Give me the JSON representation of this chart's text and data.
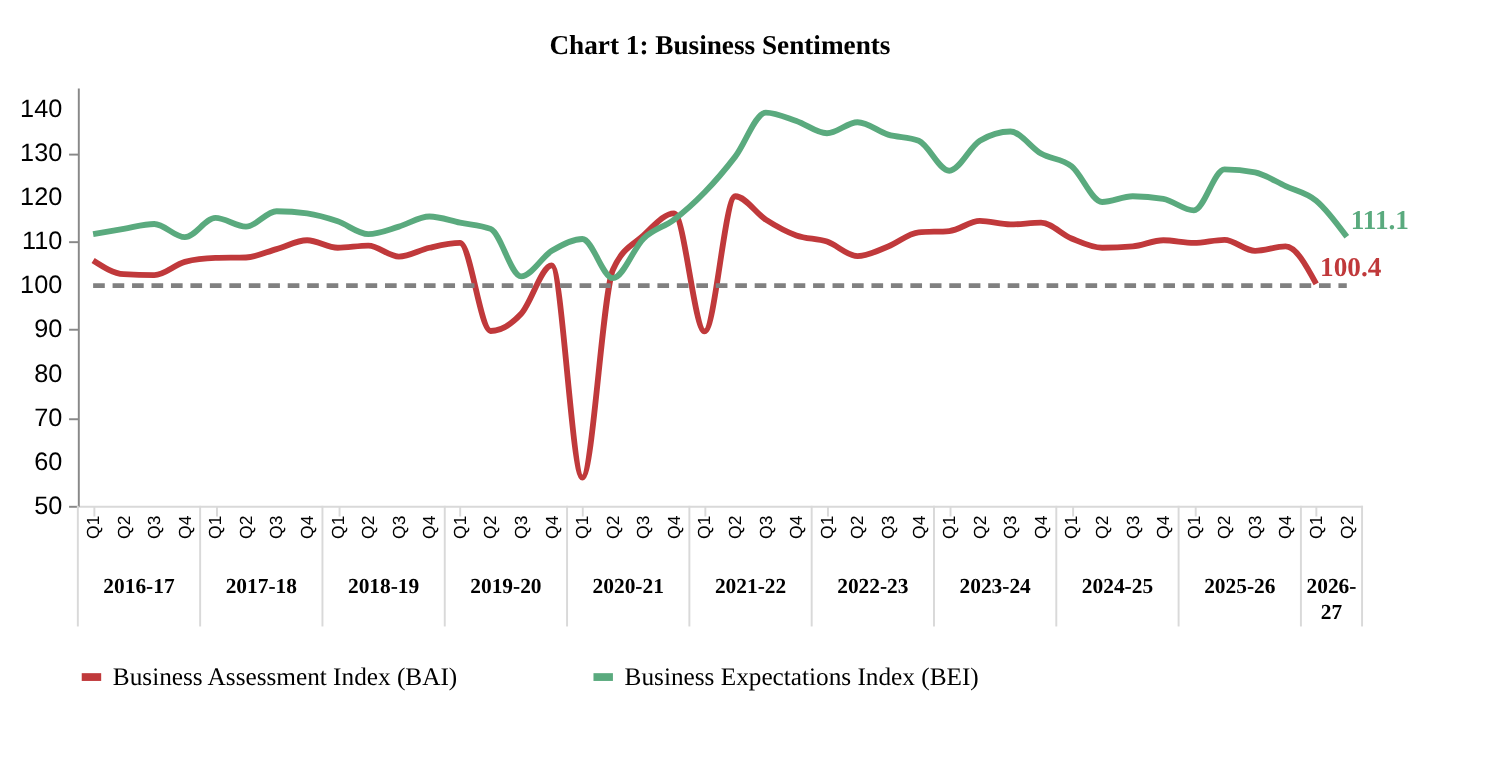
{
  "chart_data": {
    "type": "line",
    "title": "Chart 1: Business Sentiments",
    "categories": [
      "Q1",
      "Q2",
      "Q3",
      "Q4",
      "Q1",
      "Q2",
      "Q3",
      "Q4",
      "Q1",
      "Q2",
      "Q3",
      "Q4",
      "Q1",
      "Q2",
      "Q3",
      "Q4",
      "Q1",
      "Q2",
      "Q3",
      "Q4",
      "Q1",
      "Q2",
      "Q3",
      "Q4",
      "Q1",
      "Q2",
      "Q3",
      "Q4",
      "Q1",
      "Q2",
      "Q3",
      "Q4",
      "Q1",
      "Q2",
      "Q3",
      "Q4",
      "Q1",
      "Q2",
      "Q3",
      "Q4",
      "Q1",
      "Q2"
    ],
    "annotations": [
      "2016-17",
      "2017-18",
      "2018-19",
      "2019-20",
      "2020-21",
      "2021-22",
      "2022-23",
      "2023-24",
      "2024-25",
      "2025-26",
      "2026-27"
    ],
    "series": [
      {
        "name": "Business Assessment Index (BAI)",
        "color": "#c0393b",
        "values": [
          105.7,
          102.6,
          102.4,
          105.4,
          106.3,
          106.4,
          108.3,
          110.3,
          108.6,
          109.1,
          106.6,
          108.6,
          109.7,
          89.7,
          93.6,
          104.6,
          56.4,
          103.6,
          111.4,
          116.4,
          89.6,
          120.3,
          115,
          111.4,
          110,
          106.7,
          108.9,
          112.1,
          112.4,
          114.7,
          113.9,
          114.3,
          110.7,
          108.6,
          108.9,
          110.3,
          109.7,
          110.4,
          107.9,
          108.9,
          100.4,
          null
        ],
        "value_labels": [
          null,
          null,
          null,
          null,
          null,
          null,
          null,
          null,
          null,
          null,
          null,
          null,
          null,
          null,
          null,
          null,
          null,
          null,
          null,
          null,
          null,
          null,
          null,
          null,
          null,
          null,
          null,
          null,
          null,
          null,
          null,
          null,
          null,
          null,
          null,
          null,
          null,
          null,
          null,
          null,
          "100.4",
          null
        ]
      },
      {
        "name": "Business Expectations Index (BEI)",
        "color": "#5aaa7e",
        "values": [
          111.7,
          112.9,
          114,
          111,
          115.4,
          113.4,
          116.9,
          116.4,
          114.6,
          111.7,
          113.4,
          115.7,
          114.3,
          112.9,
          102.1,
          107.9,
          110.6,
          101.7,
          110.7,
          115,
          121.2,
          129.3,
          139.3,
          137.4,
          134.6,
          137.1,
          134.3,
          132.9,
          126.1,
          132.9,
          135,
          130,
          127.1,
          119,
          120.3,
          119.7,
          117.1,
          126.4,
          125.7,
          122.6,
          119.3,
          111.1
        ],
        "value_labels": [
          null,
          null,
          null,
          null,
          null,
          null,
          null,
          null,
          null,
          null,
          null,
          null,
          null,
          null,
          null,
          null,
          null,
          null,
          null,
          null,
          null,
          null,
          null,
          null,
          null,
          null,
          null,
          null,
          null,
          null,
          null,
          null,
          null,
          null,
          null,
          null,
          null,
          null,
          null,
          null,
          null,
          "111.1"
        ]
      }
    ],
    "ylim": [
      50,
      145
    ],
    "yticks": [
      50,
      60,
      70,
      80,
      90,
      100,
      110,
      120,
      130,
      140
    ],
    "grid": false,
    "legend": "bottom",
    "ref_lines": [
      {
        "axis": "y",
        "value": 100,
        "color": "#808080",
        "line_style": "dashed"
      }
    ]
  }
}
